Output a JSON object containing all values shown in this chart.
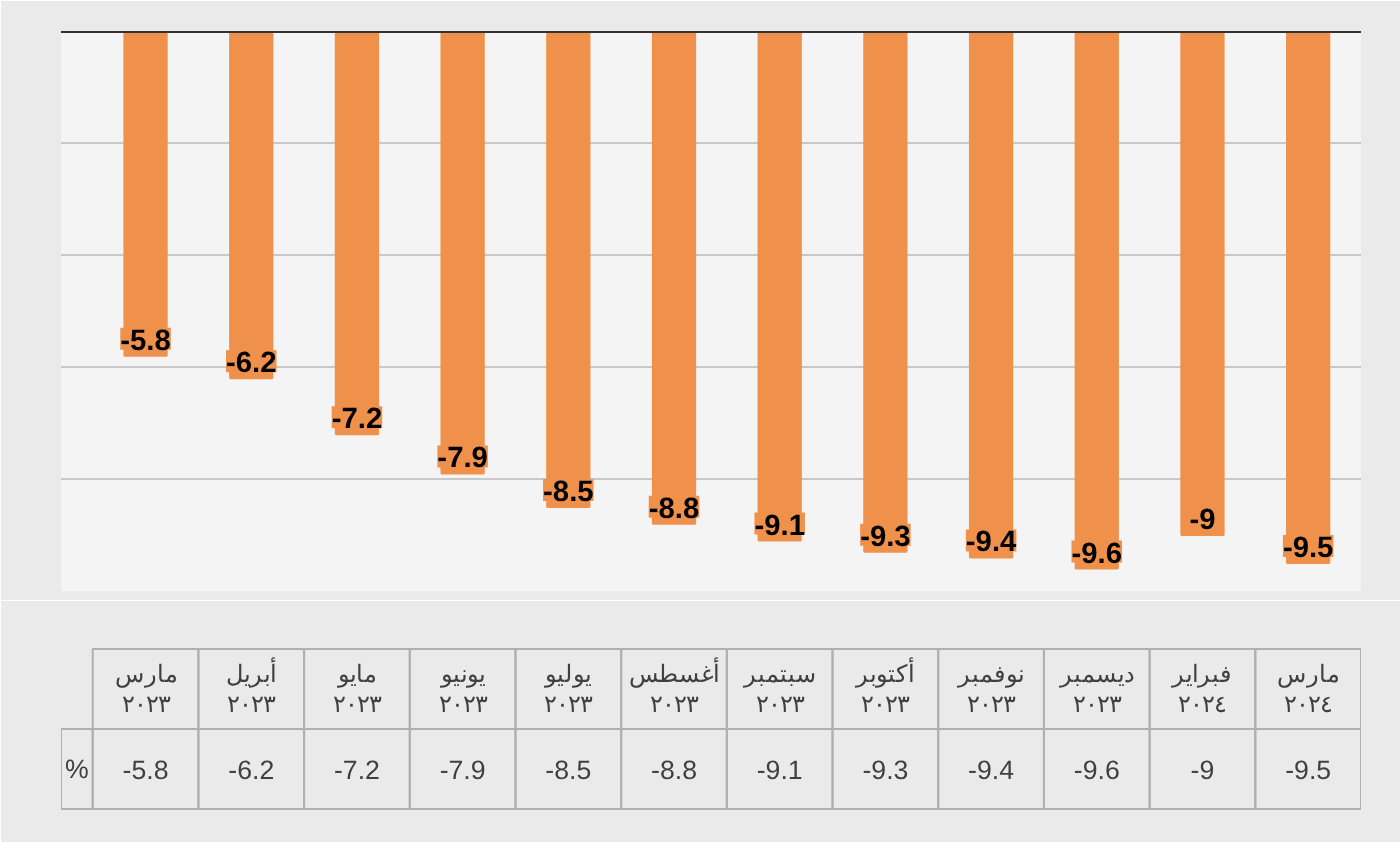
{
  "chart_data": {
    "type": "bar",
    "categories": [
      "مارس ٢٠٢٣",
      "أبريل ٢٠٢٣",
      "مايو ٢٠٢٣",
      "يونيو ٢٠٢٣",
      "يوليو ٢٠٢٣",
      "أغسطس ٢٠٢٣",
      "سبتمبر ٢٠٢٣",
      "أكتوبر ٢٠٢٣",
      "نوفمبر ٢٠٢٣",
      "ديسمبر ٢٠٢٣",
      "فبراير ٢٠٢٤",
      "مارس ٢٠٢٤"
    ],
    "series": [
      {
        "name": "%",
        "color": "#f0914b",
        "values": [
          -5.8,
          -6.2,
          -7.2,
          -7.9,
          -8.5,
          -8.8,
          -9.1,
          -9.3,
          -9.4,
          -9.6,
          -9,
          -9.5
        ]
      }
    ],
    "annotations": [
      {
        "text": "-5.8",
        "x": "مارس ٢٠٢٣",
        "y": -5.8
      },
      {
        "text": "-6.2",
        "x": "أبريل ٢٠٢٣",
        "y": -6.2
      },
      {
        "text": "-7.2",
        "x": "مايو ٢٠٢٣",
        "y": -7.2
      },
      {
        "text": "-7.9",
        "x": "يونيو ٢٠٢٣",
        "y": -7.9
      },
      {
        "text": "-8.5",
        "x": "يوليو ٢٠٢٣",
        "y": -8.5
      },
      {
        "text": "-8.8",
        "x": "أغسطس ٢٠٢٣",
        "y": -8.8
      },
      {
        "text": "-9.1",
        "x": "سبتمبر ٢٠٢٣",
        "y": -9.1
      },
      {
        "text": "-9.3",
        "x": "أكتوبر ٢٠٢٣",
        "y": -9.3
      },
      {
        "text": "-9.4",
        "x": "نوفمبر ٢٠٢٣",
        "y": -9.4
      },
      {
        "text": "-9.6",
        "x": "ديسمبر ٢٠٢٣",
        "y": -9.6
      },
      {
        "text": "-9",
        "x": "فبراير ٢٠٢٤",
        "y": -9
      },
      {
        "text": "-9.5",
        "x": "مارس ٢٠٢٤",
        "y": -9.5
      }
    ],
    "ylim": [
      -10,
      0
    ],
    "yticks": [
      -10,
      -8,
      -6,
      -4,
      -2,
      0
    ],
    "grid": "y",
    "tick_labels": "x",
    "data_labels": true
  }
}
